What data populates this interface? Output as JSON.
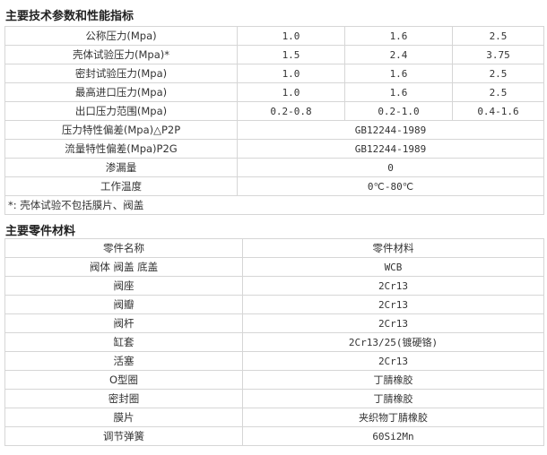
{
  "spec": {
    "title": "主要技术参数和性能指标",
    "rows": [
      {
        "label": "公称压力(Mpa)",
        "values": [
          "1.0",
          "1.6",
          "2.5"
        ]
      },
      {
        "label": "壳体试验压力(Mpa)*",
        "values": [
          "1.5",
          "2.4",
          "3.75"
        ]
      },
      {
        "label": "密封试验压力(Mpa)",
        "values": [
          "1.0",
          "1.6",
          "2.5"
        ]
      },
      {
        "label": "最高进口压力(Mpa)",
        "values": [
          "1.0",
          "1.6",
          "2.5"
        ]
      },
      {
        "label": "出口压力范围(Mpa)",
        "values": [
          "0.2-0.8",
          "0.2-1.0",
          "0.4-1.6"
        ]
      }
    ],
    "merged": [
      {
        "label": "压力特性偏差(Mpa)△P2P",
        "value": "GB12244-1989"
      },
      {
        "label": "流量特性偏差(Mpa)P2G",
        "value": "GB12244-1989"
      },
      {
        "label": "渗漏量",
        "value": "0"
      },
      {
        "label": "工作温度",
        "value": "0℃-80℃"
      }
    ],
    "note": "*: 壳体试验不包括膜片、阀盖"
  },
  "parts": {
    "title": "主要零件材料",
    "headers": [
      "零件名称",
      "零件材料"
    ],
    "rows": [
      [
        "阀体 阀盖 底盖",
        "WCB"
      ],
      [
        "阀座",
        "2Cr13"
      ],
      [
        "阀瓣",
        "2Cr13"
      ],
      [
        "阀杆",
        "2Cr13"
      ],
      [
        "缸套",
        "2Cr13/25(镀硬铬)"
      ],
      [
        "活塞",
        "2Cr13"
      ],
      [
        "O型圈",
        "丁腈橡胶"
      ],
      [
        "密封圈",
        "丁腈橡胶"
      ],
      [
        "膜片",
        "夹织物丁腈橡胶"
      ],
      [
        "调节弹簧",
        "60Si2Mn"
      ]
    ]
  }
}
